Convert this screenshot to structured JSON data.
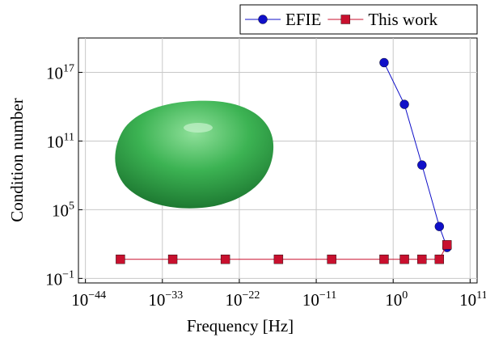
{
  "chart_data": {
    "type": "line",
    "xlabel": "Frequency [Hz]",
    "ylabel": "Condition number",
    "xscale": "log",
    "yscale": "log",
    "grid": true,
    "legend": "top-right",
    "xlim": [
      1e-45,
      1000000000000.0
    ],
    "ylim": [
      0.04,
      1e+20
    ],
    "xticks": [
      {
        "value": 1e-44,
        "label": {
          "base": "10",
          "exponent": "−44"
        }
      },
      {
        "value": 1e-33,
        "label": {
          "base": "10",
          "exponent": "−33"
        }
      },
      {
        "value": 1e-22,
        "label": {
          "base": "10",
          "exponent": "−22"
        }
      },
      {
        "value": 1e-11,
        "label": {
          "base": "10",
          "exponent": "−11"
        }
      },
      {
        "value": 1,
        "label": {
          "base": "10",
          "exponent": "0"
        }
      },
      {
        "value": 100000000000.0,
        "label": {
          "base": "10",
          "exponent": "11"
        }
      }
    ],
    "yticks": [
      {
        "value": 0.1,
        "label": {
          "base": "10",
          "exponent": "−1"
        }
      },
      {
        "value": 100000.0,
        "label": {
          "base": "10",
          "exponent": "5"
        }
      },
      {
        "value": 100000000000.0,
        "label": {
          "base": "10",
          "exponent": "11"
        }
      },
      {
        "value": 1e+17,
        "label": {
          "base": "10",
          "exponent": "17"
        }
      }
    ],
    "series": [
      {
        "name": "EFIE",
        "color": "#1010c8",
        "marker": "circle",
        "x": [
          0.05,
          40,
          13000,
          4000000,
          50000000
        ],
        "values": [
          7e+17,
          160000000000000.0,
          800000000.0,
          3400,
          50
        ]
      },
      {
        "name": "This work",
        "color": "#c8102e",
        "marker": "square",
        "x": [
          1e-39,
          3e-32,
          1e-24,
          4e-17,
          1.6e-09,
          0.05,
          40,
          13000,
          4000000,
          50000000
        ],
        "values": [
          4.7,
          4.7,
          4.7,
          4.7,
          4.7,
          4.7,
          4.7,
          4.7,
          4.7,
          85
        ]
      }
    ]
  }
}
